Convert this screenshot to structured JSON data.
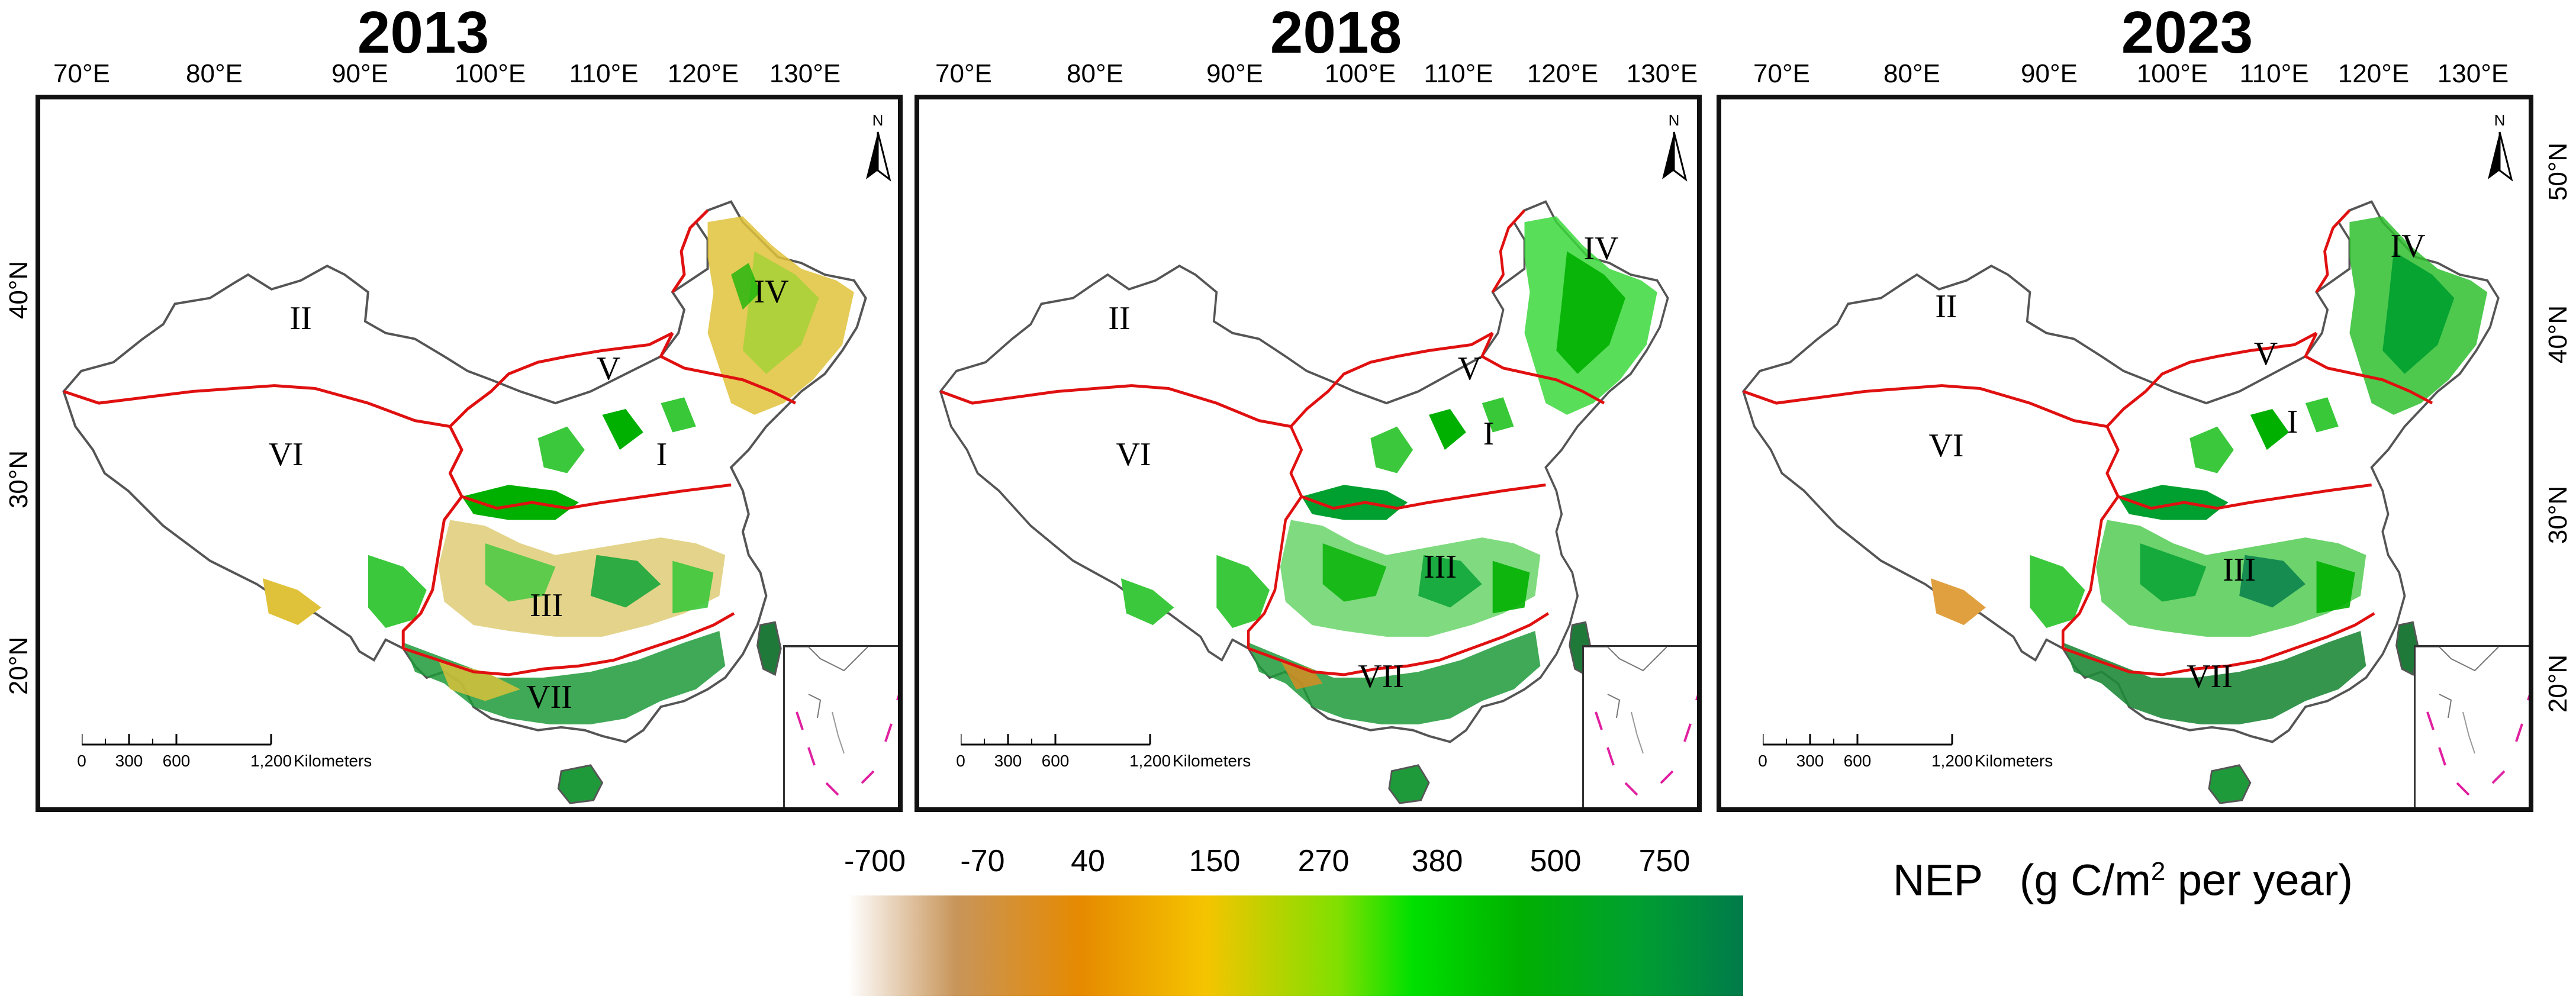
{
  "panels": [
    {
      "year": "2013",
      "variant": "2013"
    },
    {
      "year": "2018",
      "variant": "2018"
    },
    {
      "year": "2023",
      "variant": "2023"
    }
  ],
  "longitude_labels": [
    "70°E",
    "80°E",
    "90°E",
    "100°E",
    "110°E",
    "120°E",
    "130°E"
  ],
  "latitude_labels": [
    "50°N",
    "40°N",
    "30°N",
    "20°N"
  ],
  "left_latitude_labels": [
    "40°N",
    "30°N",
    "20°N"
  ],
  "regions": [
    "I",
    "II",
    "III",
    "IV",
    "V",
    "VI",
    "VII"
  ],
  "north_arrow": "N",
  "scale_bar": {
    "ticks": [
      "0",
      "300",
      "600",
      "1,200"
    ],
    "unit": "Kilometers"
  },
  "legend": {
    "ticks": [
      "-700",
      "-70",
      "40",
      "150",
      "270",
      "380",
      "500",
      "750"
    ],
    "colors": [
      "#ffffff",
      "#c8955a",
      "#e68a00",
      "#f5c400",
      "#7ee000",
      "#00e000",
      "#00b000",
      "#007a4a"
    ]
  },
  "legend_title": {
    "prefix": "NEP",
    "unit_main": "(g C/m",
    "unit_sup": "2",
    "unit_end": " per year)"
  },
  "colors": {
    "boundary_red": "#e01010",
    "border_grey": "#555555",
    "inset_dash": "#e020a0"
  }
}
